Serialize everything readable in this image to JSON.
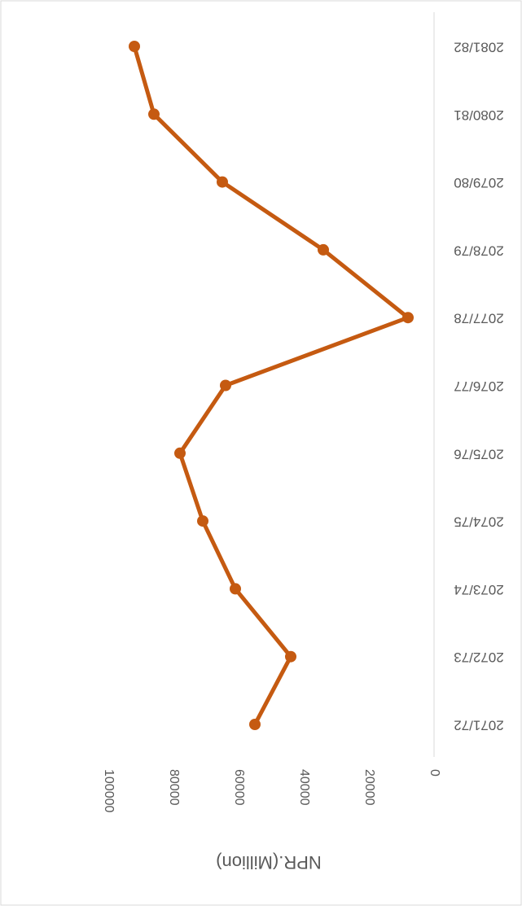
{
  "chart_data": {
    "type": "line",
    "categories": [
      "2071/72",
      "2072/73",
      "2073/74",
      "2074/75",
      "2075/76",
      "2076/77",
      "2077/78",
      "2078/79",
      "2079/80",
      "2080/81",
      "2081/82"
    ],
    "series": [
      {
        "name": "NPR.(Million)",
        "color": "#c55a11",
        "values": [
          55000,
          44000,
          61000,
          71000,
          78000,
          64000,
          8000,
          34000,
          65000,
          86000,
          92000
        ]
      }
    ],
    "ylabel": "NPR.(Million)",
    "ylim": [
      0,
      100000
    ],
    "yticks": [
      0,
      20000,
      40000,
      60000,
      80000,
      100000
    ]
  }
}
